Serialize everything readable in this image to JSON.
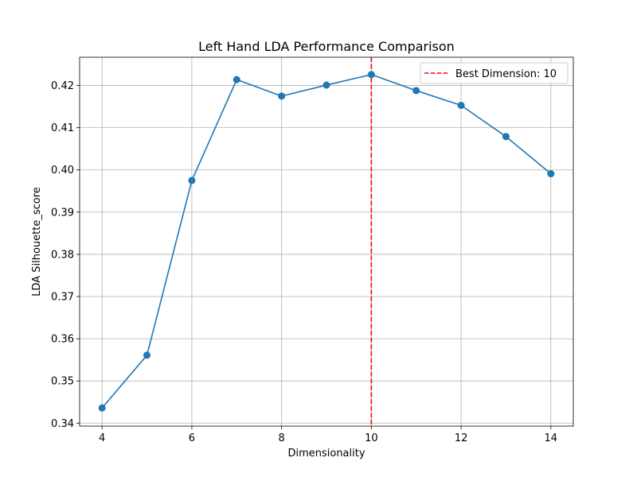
{
  "chart_data": {
    "type": "line",
    "title": "Left Hand LDA Performance Comparison",
    "xlabel": "Dimensionality",
    "ylabel": "LDA Silhouette_score",
    "xlim": [
      3.5,
      14.5
    ],
    "ylim": [
      0.3393,
      0.4267
    ],
    "x_ticks": [
      4,
      6,
      8,
      10,
      12,
      14
    ],
    "y_ticks": [
      0.34,
      0.35,
      0.36,
      0.37,
      0.38,
      0.39,
      0.4,
      0.41,
      0.42
    ],
    "x_tick_labels": [
      "4",
      "6",
      "8",
      "10",
      "12",
      "14"
    ],
    "y_tick_labels": [
      "0.34",
      "0.35",
      "0.36",
      "0.37",
      "0.38",
      "0.39",
      "0.40",
      "0.41",
      "0.42"
    ],
    "grid": true,
    "legend_position": "top-right",
    "series": [
      {
        "x": [
          4,
          5,
          6,
          7,
          8,
          9,
          10,
          11,
          12,
          13,
          14
        ],
        "y": [
          0.3436,
          0.3561,
          0.3975,
          0.4214,
          0.4175,
          0.4201,
          0.4226,
          0.4188,
          0.4153,
          0.4079,
          0.3991
        ],
        "color": "#1f77b4",
        "marker": "circle"
      }
    ],
    "reference_lines": [
      {
        "orientation": "vertical",
        "x": 10,
        "style": "dashed",
        "color": "#ff0000",
        "label": "Best Dimension: 10"
      }
    ]
  }
}
